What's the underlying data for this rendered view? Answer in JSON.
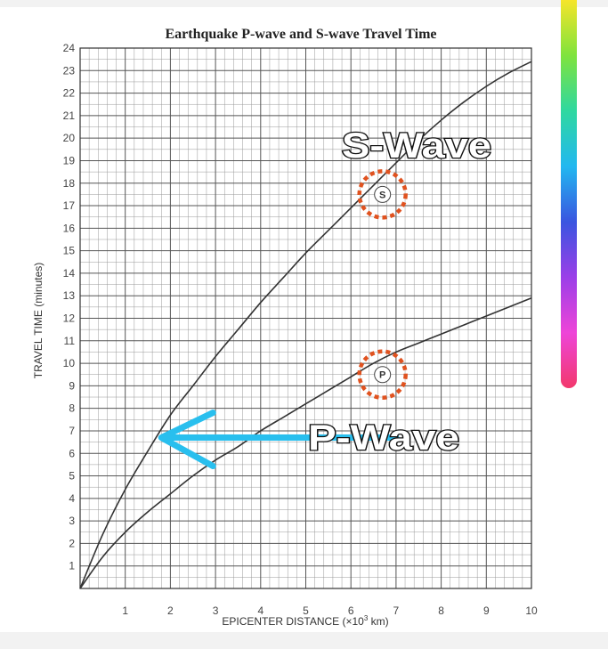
{
  "chart_data": {
    "type": "line",
    "title": "Earthquake P-wave and S-wave Travel Time",
    "xlabel": "EPICENTER DISTANCE (×10",
    "xlabel_sup": "3",
    "xlabel_unit": " km)",
    "ylabel": "TRAVEL TIME (minutes)",
    "xlim": [
      0,
      10
    ],
    "ylim": [
      0,
      24
    ],
    "x_ticks": [
      "1",
      "2",
      "3",
      "4",
      "5",
      "6",
      "7",
      "8",
      "9",
      "10"
    ],
    "y_ticks": [
      "1",
      "2",
      "3",
      "4",
      "5",
      "6",
      "7",
      "8",
      "9",
      "10",
      "11",
      "12",
      "13",
      "14",
      "15",
      "16",
      "17",
      "18",
      "19",
      "20",
      "21",
      "22",
      "23",
      "24"
    ],
    "grid": true,
    "series": [
      {
        "name": "S-Wave",
        "x": [
          0,
          0.5,
          1,
          1.5,
          2,
          2.5,
          3,
          3.5,
          4,
          4.5,
          5,
          5.5,
          6,
          6.5,
          7,
          7.5,
          8,
          8.5,
          9,
          9.5,
          10
        ],
        "y": [
          0,
          2.4,
          4.4,
          6.1,
          7.7,
          9.0,
          10.3,
          11.5,
          12.7,
          13.8,
          14.9,
          15.9,
          16.9,
          17.9,
          18.9,
          19.9,
          20.8,
          21.6,
          22.3,
          22.9,
          23.4
        ]
      },
      {
        "name": "P-Wave",
        "x": [
          0,
          0.5,
          1,
          1.5,
          2,
          2.5,
          3,
          3.5,
          4,
          4.5,
          5,
          5.5,
          6,
          6.5,
          7,
          7.5,
          8,
          8.5,
          9,
          9.5,
          10
        ],
        "y": [
          0,
          1.4,
          2.5,
          3.4,
          4.2,
          5.0,
          5.7,
          6.3,
          7.0,
          7.6,
          8.2,
          8.8,
          9.4,
          10.0,
          10.5,
          10.9,
          11.3,
          11.7,
          12.1,
          12.5,
          12.9
        ]
      }
    ],
    "annotations": [
      {
        "label": "S",
        "x": 6.7,
        "y": 17.5,
        "color": "#e0521f"
      },
      {
        "label": "P",
        "x": 6.7,
        "y": 9.5,
        "color": "#e0521f"
      }
    ],
    "arrow": {
      "from": [
        7,
        6.7
      ],
      "to": [
        1.8,
        6.7
      ],
      "color": "#29bfee"
    },
    "colors": {
      "curve": "#333333",
      "grid_major": "#555555",
      "grid_minor": "#999999"
    }
  },
  "overlay": {
    "s_wave_label": "S-Wave",
    "p_wave_label": "P-Wave"
  },
  "color_bar": {
    "colors": [
      "#f6e52a",
      "#7fe33d",
      "#2fd8a0",
      "#22b8f0",
      "#3a55e0",
      "#9b3fe8",
      "#ee45d8",
      "#f2386c"
    ]
  }
}
